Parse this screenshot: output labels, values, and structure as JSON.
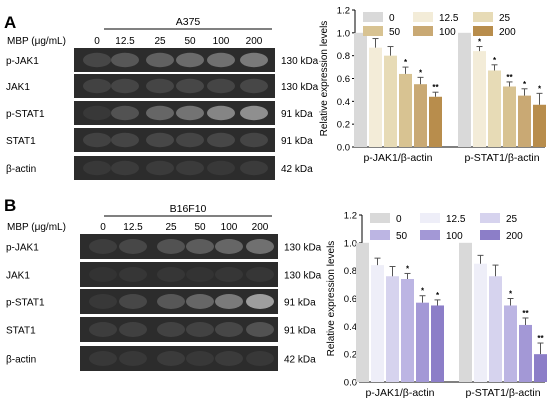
{
  "panels": [
    {
      "letter": "A",
      "cell_line": "A375",
      "treatment_label": "MBP (μg/mL)",
      "concentrations": [
        "0",
        "12.5",
        "25",
        "50",
        "100",
        "200"
      ],
      "blots": [
        {
          "protein": "p-JAK1",
          "size": "130 kDa",
          "intensity": [
            0.72,
            0.66,
            0.62,
            0.58,
            0.56,
            0.52
          ]
        },
        {
          "protein": "JAK1",
          "size": "130 kDa",
          "intensity": [
            0.74,
            0.73,
            0.73,
            0.72,
            0.73,
            0.72
          ]
        },
        {
          "protein": "p-STAT1",
          "size": "91 kDa",
          "intensity": [
            0.78,
            0.68,
            0.6,
            0.55,
            0.48,
            0.44
          ]
        },
        {
          "protein": "STAT1",
          "size": "91 kDa",
          "intensity": [
            0.74,
            0.73,
            0.72,
            0.73,
            0.72,
            0.73
          ]
        },
        {
          "protein": "β-actin",
          "size": "42 kDa",
          "intensity": [
            0.78,
            0.77,
            0.77,
            0.77,
            0.78,
            0.77
          ]
        }
      ]
    },
    {
      "letter": "B",
      "cell_line": "B16F10",
      "treatment_label": "MBP (μg/mL)",
      "concentrations": [
        "0",
        "12.5",
        "25",
        "50",
        "100",
        "200"
      ],
      "blots": [
        {
          "protein": "p-JAK1",
          "size": "130 kDa",
          "intensity": [
            0.76,
            0.72,
            0.68,
            0.64,
            0.6,
            0.56
          ]
        },
        {
          "protein": "JAK1",
          "size": "130 kDa",
          "intensity": [
            0.8,
            0.79,
            0.79,
            0.8,
            0.79,
            0.79
          ]
        },
        {
          "protein": "p-STAT1",
          "size": "91 kDa",
          "intensity": [
            0.78,
            0.72,
            0.66,
            0.6,
            0.52,
            0.38
          ]
        },
        {
          "protein": "STAT1",
          "size": "91 kDa",
          "intensity": [
            0.76,
            0.75,
            0.74,
            0.74,
            0.72,
            0.68
          ]
        },
        {
          "protein": "β-actin",
          "size": "42 kDa",
          "intensity": [
            0.78,
            0.78,
            0.77,
            0.78,
            0.77,
            0.78
          ]
        }
      ]
    }
  ],
  "chart_data": [
    {
      "type": "bar",
      "categories": [
        "p-JAK1/β-actin",
        "p-STAT1/β-actin"
      ],
      "ylabel": "Relative expression levels",
      "ylim": [
        0,
        1.2
      ],
      "yticks": [
        "0.0",
        "0.2",
        "0.4",
        "0.6",
        "0.8",
        "1.0",
        "1.2"
      ],
      "legend_position": "top",
      "series": [
        {
          "name": "0",
          "color": "#d9d9d9",
          "values": [
            1.0,
            1.0
          ],
          "errors": [
            0.0,
            0.0
          ],
          "sig": [
            "",
            ""
          ]
        },
        {
          "name": "12.5",
          "color": "#f3ecd8",
          "values": [
            0.87,
            0.84
          ],
          "errors": [
            0.08,
            0.04
          ],
          "sig": [
            "",
            "*"
          ]
        },
        {
          "name": "25",
          "color": "#e7dbb6",
          "values": [
            0.8,
            0.67
          ],
          "errors": [
            0.08,
            0.05
          ],
          "sig": [
            "",
            "*"
          ]
        },
        {
          "name": "50",
          "color": "#d8c392",
          "values": [
            0.64,
            0.53
          ],
          "errors": [
            0.06,
            0.04
          ],
          "sig": [
            "*",
            "**"
          ]
        },
        {
          "name": "100",
          "color": "#c9a974",
          "values": [
            0.55,
            0.45
          ],
          "errors": [
            0.06,
            0.06
          ],
          "sig": [
            "*",
            "*"
          ]
        },
        {
          "name": "200",
          "color": "#b88d4c",
          "values": [
            0.44,
            0.37
          ],
          "errors": [
            0.04,
            0.1
          ],
          "sig": [
            "**",
            "*"
          ]
        }
      ]
    },
    {
      "type": "bar",
      "categories": [
        "p-JAK1/β-actin",
        "p-STAT1/β-actin"
      ],
      "ylabel": "Relative expression levels",
      "ylim": [
        0,
        1.2
      ],
      "yticks": [
        "0.0",
        "0.2",
        "0.4",
        "0.6",
        "0.8",
        "1.0",
        "1.2"
      ],
      "legend_position": "top",
      "series": [
        {
          "name": "0",
          "color": "#d9d9d9",
          "values": [
            1.0,
            1.0
          ],
          "errors": [
            0.0,
            0.0
          ],
          "sig": [
            "",
            ""
          ]
        },
        {
          "name": "12.5",
          "color": "#eeeef8",
          "values": [
            0.84,
            0.85
          ],
          "errors": [
            0.05,
            0.06
          ],
          "sig": [
            "",
            ""
          ]
        },
        {
          "name": "25",
          "color": "#d6d3ee",
          "values": [
            0.76,
            0.76
          ],
          "errors": [
            0.07,
            0.08
          ],
          "sig": [
            "",
            ""
          ]
        },
        {
          "name": "50",
          "color": "#bcb5e3",
          "values": [
            0.74,
            0.55
          ],
          "errors": [
            0.04,
            0.05
          ],
          "sig": [
            "*",
            "*"
          ]
        },
        {
          "name": "100",
          "color": "#a398d6",
          "values": [
            0.57,
            0.41
          ],
          "errors": [
            0.05,
            0.05
          ],
          "sig": [
            "*",
            "**"
          ]
        },
        {
          "name": "200",
          "color": "#8c7ec8",
          "values": [
            0.55,
            0.2
          ],
          "errors": [
            0.04,
            0.08
          ],
          "sig": [
            "*",
            "**"
          ]
        }
      ]
    }
  ]
}
